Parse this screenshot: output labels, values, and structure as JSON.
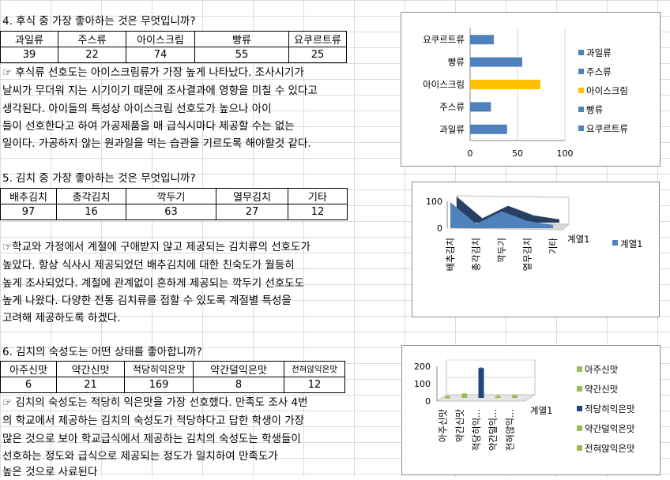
{
  "q4": {
    "title": "4. 후식 중 가장 좋아하는 것은 무엇입니까?",
    "headers": [
      "과일류",
      "주스류",
      "아이스크림",
      "빵류",
      "요쿠르트류"
    ],
    "values": [
      "39",
      "22",
      "74",
      "55",
      "25"
    ],
    "para": [
      "☞ 후식류 선호도는 아이스크림류가 가장 높게 나타났다. 조사시기가",
      "날씨가 무더워 지는 시기이기 때문에 조사결과에 영향을 미칠 수 있다고",
      "생각된다.  아이들의 특성상 아이스크림 선호도가 높으나 아이",
      "들이 선호한다고 하여 가공제품을 매 급식시마다 제공할 수는 없는",
      "일이다. 가공하지 않는 원과일을 먹는 습관을 기르도록 해야할것 같다."
    ]
  },
  "q5": {
    "title": "5. 김치 중 가장 좋아하는 것은 무엇입니까?",
    "headers": [
      "배추김치",
      "총각김치",
      "깍두기",
      "열무김치",
      "기타"
    ],
    "values": [
      "97",
      "16",
      "63",
      "27",
      "12"
    ],
    "para": [
      "☞학교와 가정에서 계절에 구애받지 않고 제공되는 김치류의 선호도가",
      "높았다. 항상 식사시 제공되었던 배추김치에 대한 친숙도가 월등히",
      "높게 조사되었다. 계절에 관계없이 흔하게 제공되는 깍두기 선호도도",
      "높게 나왔다. 다양한 전통 김치류를 접할 수 있도록 계절별 특성을",
      "고려해 제공하도록 하겠다."
    ]
  },
  "q6": {
    "title": "6. 김치의 숙성도는 어떤 상태를 좋아합니까?",
    "headers": [
      "아주신맛",
      "약간신맛",
      "적당히익은맛",
      "약간덜익은맛",
      "전혀않익은맛"
    ],
    "values": [
      "6",
      "21",
      "169",
      "8",
      "12"
    ],
    "para": [
      "☞ 김치의 숙성도는 적당히 익은맛을 가장 선호했다. 만족도 조사 4번",
      "의 학교에서 제공하는 김치의 숙성도가 적당하다고 답한 학생이 가장",
      "많은 것으로 보아 학교급식에서 제공하는 김치의 숙성도는 학생들이",
      "선호하는 정도와 급식으로 제공되는 정도가 일치하여 만족도가",
      "높은 것으로 사료된다"
    ]
  },
  "chart_data": [
    {
      "type": "bar",
      "orientation": "horizontal",
      "categories": [
        "과일류",
        "주스류",
        "아이스크림",
        "빵류",
        "요쿠르트류"
      ],
      "values": [
        39,
        22,
        74,
        55,
        25
      ],
      "colors": [
        "#4f81bd",
        "#4f81bd",
        "#ffc000",
        "#4f81bd",
        "#4f81bd"
      ],
      "xlim": [
        0,
        100
      ],
      "xticks": [
        "0",
        "50",
        "100"
      ],
      "legend": [
        "과일류",
        "주스류",
        "아이스크림",
        "빵류",
        "요쿠르트류"
      ],
      "legend_position": "right"
    },
    {
      "type": "area",
      "style": "3d",
      "categories": [
        "배추김치",
        "총각김치",
        "깍두기",
        "열무김치",
        "기타"
      ],
      "series": [
        {
          "name": "계열1",
          "values": [
            97,
            16,
            63,
            27,
            12
          ]
        }
      ],
      "ylim": [
        0,
        100
      ],
      "yticks": [
        "0",
        "100"
      ],
      "depth_label": "계열1",
      "legend": [
        "계열1"
      ],
      "legend_position": "right",
      "color": "#4f81bd"
    },
    {
      "type": "bar",
      "style": "3d-column",
      "categories": [
        "아주신맛",
        "약간신맛",
        "적당히익...",
        "약간덜익...",
        "전혀않익..."
      ],
      "values": [
        6,
        21,
        169,
        8,
        12
      ],
      "colors": [
        "#9bbb59",
        "#9bbb59",
        "#1f497d",
        "#9bbb59",
        "#9bbb59"
      ],
      "ylim": [
        0,
        200
      ],
      "yticks": [
        "0",
        "100",
        "200"
      ],
      "depth_label": "계열1",
      "legend": [
        "아주신맛",
        "약간신맛",
        "적당히익은맛",
        "약간덜익은맛",
        "전혀않익은맛"
      ],
      "legend_colors": [
        "#9bbb59",
        "#9bbb59",
        "#1f497d",
        "#9bbb59",
        "#9bbb59"
      ],
      "legend_position": "right"
    }
  ]
}
